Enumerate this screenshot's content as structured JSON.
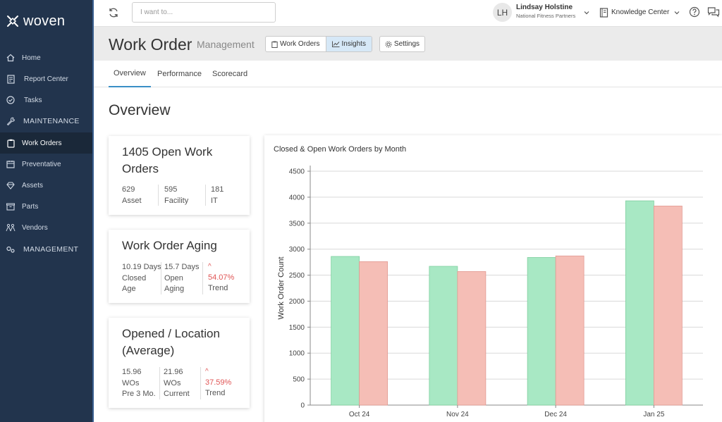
{
  "app": {
    "logo_text": "woven"
  },
  "sidebar": {
    "items": [
      {
        "label": "Home",
        "icon": "home-icon"
      },
      {
        "label": "Report Center",
        "icon": "report-icon"
      },
      {
        "label": "Tasks",
        "icon": "check-circle-icon"
      },
      {
        "label": "MAINTENANCE",
        "icon": "wrench-icon"
      },
      {
        "label": "Work Orders",
        "icon": "clipboard-icon",
        "active": true
      },
      {
        "label": "Preventative",
        "icon": "calendar-icon"
      },
      {
        "label": "Assets",
        "icon": "diamond-icon"
      },
      {
        "label": "Parts",
        "icon": "box-icon"
      },
      {
        "label": "Vendors",
        "icon": "people-icon"
      },
      {
        "label": "MANAGEMENT",
        "icon": "gears-icon"
      }
    ]
  },
  "topbar": {
    "search_placeholder": "I want to...",
    "user": {
      "initials": "LH",
      "name": "Lindsay Holstine",
      "org": "National Fitness Partners"
    },
    "knowledge_center": "Knowledge Center"
  },
  "header": {
    "title": "Work Order",
    "subtitle": "Management",
    "segments": [
      "Work Orders",
      "Insights"
    ],
    "active_segment": "Insights",
    "settings_label": "Settings"
  },
  "tabs": [
    "Overview",
    "Performance",
    "Scorecard"
  ],
  "overview": {
    "title": "Overview",
    "open_work_orders": {
      "title": "1405 Open Work Orders",
      "stats": [
        {
          "value": "629",
          "label": "Asset"
        },
        {
          "value": "595",
          "label": "Facility"
        },
        {
          "value": "181",
          "label": "IT"
        }
      ]
    },
    "aging": {
      "title": "Work Order Aging",
      "closed": {
        "value": "10.19 Days",
        "label1": "Closed",
        "label2": "Age"
      },
      "open": {
        "value": "15.7 Days",
        "label1": "Open",
        "label2": "Aging"
      },
      "trend": {
        "arrow": "^",
        "value": "54.07%",
        "label": "Trend"
      }
    },
    "location": {
      "title": "Opened / Location (Average)",
      "prev": {
        "value": "15.96",
        "label1": "WOs",
        "label2": "Pre 3 Mo."
      },
      "current": {
        "value": "21.96",
        "label1": "WOs",
        "label2": "Current"
      },
      "trend": {
        "arrow": "^",
        "value": "37.59%",
        "label": "Trend"
      }
    }
  },
  "chart_data": {
    "type": "bar",
    "title": "Closed & Open Work Orders by Month",
    "ylabel": "Work Order Count",
    "xlabel": "",
    "categories": [
      "Oct 24",
      "Nov 24",
      "Dec 24",
      "Jan 25"
    ],
    "series": [
      {
        "values": [
          2860,
          2670,
          2840,
          3930
        ],
        "color": "#a8e8c4"
      },
      {
        "values": [
          2760,
          2570,
          2870,
          3830
        ],
        "color": "#f5beb6"
      }
    ],
    "ylim": [
      0,
      4500
    ],
    "yticks": [
      "0",
      "500",
      "1000",
      "1500",
      "2000",
      "2500",
      "3000",
      "3500",
      "4000",
      "4500"
    ],
    "grid": true
  }
}
